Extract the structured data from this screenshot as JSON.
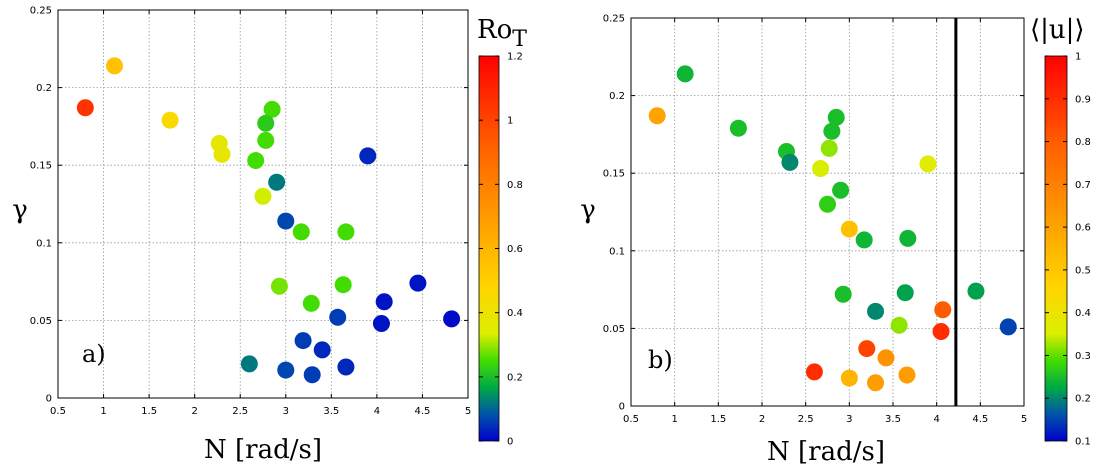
{
  "chart_data": [
    {
      "type": "scatter",
      "panel_label": "a)",
      "xlabel": "N [rad/s]",
      "ylabel": "γ",
      "xlim": [
        0.5,
        5
      ],
      "ylim": [
        0,
        0.25
      ],
      "x_ticks": [
        "0.5",
        "1",
        "1.5",
        "2",
        "2.5",
        "3",
        "3.5",
        "4",
        "4.5",
        "5"
      ],
      "y_ticks": [
        "0",
        "0.05",
        "0.1",
        "0.15",
        "0.2",
        "0.25"
      ],
      "grid": true,
      "colorbar": {
        "title_main": "Ro",
        "title_sub": "T",
        "range": [
          0,
          1.2
        ],
        "ticks": [
          "0",
          "0.2",
          "0.4",
          "0.6",
          "0.8",
          "1",
          "1.2"
        ]
      },
      "points": [
        {
          "x": 0.8,
          "y": 0.187,
          "c": 1.05
        },
        {
          "x": 1.12,
          "y": 0.214,
          "c": 0.55
        },
        {
          "x": 1.73,
          "y": 0.179,
          "c": 0.45
        },
        {
          "x": 2.27,
          "y": 0.164,
          "c": 0.38
        },
        {
          "x": 2.3,
          "y": 0.157,
          "c": 0.38
        },
        {
          "x": 2.85,
          "y": 0.186,
          "c": 0.25
        },
        {
          "x": 2.78,
          "y": 0.177,
          "c": 0.22
        },
        {
          "x": 2.78,
          "y": 0.166,
          "c": 0.25
        },
        {
          "x": 2.67,
          "y": 0.153,
          "c": 0.25
        },
        {
          "x": 2.9,
          "y": 0.139,
          "c": 0.12
        },
        {
          "x": 2.75,
          "y": 0.13,
          "c": 0.33
        },
        {
          "x": 3.0,
          "y": 0.114,
          "c": 0.07
        },
        {
          "x": 3.17,
          "y": 0.107,
          "c": 0.25
        },
        {
          "x": 3.66,
          "y": 0.107,
          "c": 0.25
        },
        {
          "x": 3.9,
          "y": 0.156,
          "c": 0.04
        },
        {
          "x": 2.93,
          "y": 0.072,
          "c": 0.28
        },
        {
          "x": 3.28,
          "y": 0.061,
          "c": 0.25
        },
        {
          "x": 3.63,
          "y": 0.073,
          "c": 0.25
        },
        {
          "x": 3.57,
          "y": 0.052,
          "c": 0.06
        },
        {
          "x": 4.08,
          "y": 0.062,
          "c": 0.02
        },
        {
          "x": 4.05,
          "y": 0.048,
          "c": 0.02
        },
        {
          "x": 4.45,
          "y": 0.074,
          "c": 0.02
        },
        {
          "x": 4.82,
          "y": 0.051,
          "c": 0.01
        },
        {
          "x": 2.6,
          "y": 0.022,
          "c": 0.12
        },
        {
          "x": 3.0,
          "y": 0.018,
          "c": 0.07
        },
        {
          "x": 3.19,
          "y": 0.037,
          "c": 0.06
        },
        {
          "x": 3.29,
          "y": 0.015,
          "c": 0.06
        },
        {
          "x": 3.4,
          "y": 0.031,
          "c": 0.04
        },
        {
          "x": 3.66,
          "y": 0.02,
          "c": 0.04
        }
      ]
    },
    {
      "type": "scatter",
      "panel_label": "b)",
      "xlabel": "N [rad/s]",
      "ylabel": "γ",
      "xlim": [
        0.5,
        5
      ],
      "ylim": [
        0,
        0.25
      ],
      "x_ticks": [
        "0.5",
        "1",
        "1.5",
        "2",
        "2.5",
        "3",
        "3.5",
        "4",
        "4.5",
        "5"
      ],
      "y_ticks": [
        "0",
        "0.05",
        "0.1",
        "0.15",
        "0.2",
        "0.25"
      ],
      "grid": true,
      "vertical_line_x": 4.22,
      "colorbar": {
        "title_main": "⟨|u|⟩",
        "title_sub": "",
        "range": [
          0.1,
          1
        ],
        "ticks": [
          "0.1",
          "0.2",
          "0.3",
          "0.4",
          "0.5",
          "0.6",
          "0.7",
          "0.8",
          "0.9",
          "1"
        ]
      },
      "points": [
        {
          "x": 0.8,
          "y": 0.187,
          "c": 0.6
        },
        {
          "x": 1.12,
          "y": 0.214,
          "c": 0.24
        },
        {
          "x": 1.73,
          "y": 0.179,
          "c": 0.25
        },
        {
          "x": 2.28,
          "y": 0.164,
          "c": 0.25
        },
        {
          "x": 2.32,
          "y": 0.157,
          "c": 0.2
        },
        {
          "x": 2.85,
          "y": 0.186,
          "c": 0.25
        },
        {
          "x": 2.8,
          "y": 0.177,
          "c": 0.25
        },
        {
          "x": 2.77,
          "y": 0.166,
          "c": 0.32
        },
        {
          "x": 2.67,
          "y": 0.153,
          "c": 0.35
        },
        {
          "x": 2.9,
          "y": 0.139,
          "c": 0.25
        },
        {
          "x": 2.75,
          "y": 0.13,
          "c": 0.27
        },
        {
          "x": 3.0,
          "y": 0.114,
          "c": 0.52
        },
        {
          "x": 3.17,
          "y": 0.107,
          "c": 0.24
        },
        {
          "x": 3.67,
          "y": 0.108,
          "c": 0.24
        },
        {
          "x": 3.9,
          "y": 0.156,
          "c": 0.36
        },
        {
          "x": 2.93,
          "y": 0.072,
          "c": 0.25
        },
        {
          "x": 3.3,
          "y": 0.061,
          "c": 0.2
        },
        {
          "x": 3.64,
          "y": 0.073,
          "c": 0.22
        },
        {
          "x": 3.57,
          "y": 0.052,
          "c": 0.32
        },
        {
          "x": 4.07,
          "y": 0.062,
          "c": 0.8
        },
        {
          "x": 4.05,
          "y": 0.048,
          "c": 0.9
        },
        {
          "x": 4.45,
          "y": 0.074,
          "c": 0.22
        },
        {
          "x": 4.82,
          "y": 0.051,
          "c": 0.15
        },
        {
          "x": 2.6,
          "y": 0.022,
          "c": 0.9
        },
        {
          "x": 3.0,
          "y": 0.018,
          "c": 0.55
        },
        {
          "x": 3.2,
          "y": 0.037,
          "c": 0.85
        },
        {
          "x": 3.3,
          "y": 0.015,
          "c": 0.62
        },
        {
          "x": 3.42,
          "y": 0.031,
          "c": 0.65
        },
        {
          "x": 3.66,
          "y": 0.02,
          "c": 0.62
        }
      ]
    }
  ]
}
